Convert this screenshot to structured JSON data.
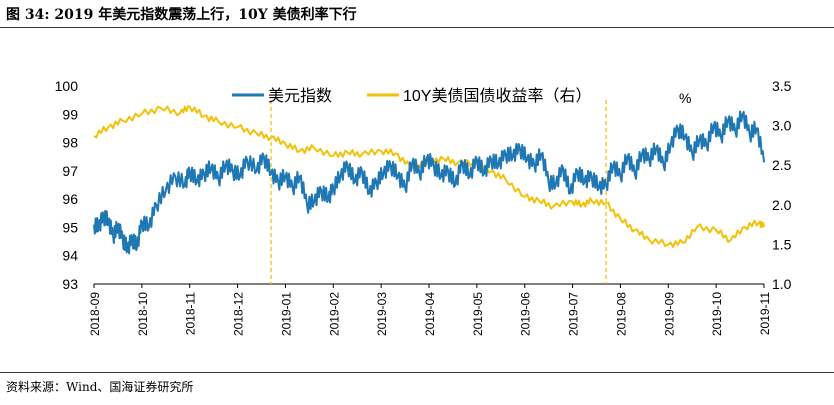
{
  "figure": {
    "title": "图 34: 2019 年美元指数震荡上行，10Y 美债利率下行",
    "source": "资料来源：Wind、国海证券研究所"
  },
  "chart_data": {
    "type": "line",
    "x_labels": [
      "2018-09",
      "2018-10",
      "2018-11",
      "2018-12",
      "2019-01",
      "2019-02",
      "2019-03",
      "2019-04",
      "2019-05",
      "2019-06",
      "2019-07",
      "2019-08",
      "2019-09",
      "2019-10",
      "2019-11"
    ],
    "y_left": {
      "min": 93,
      "max": 100,
      "ticks": [
        "93",
        "94",
        "95",
        "96",
        "97",
        "98",
        "99",
        "100"
      ]
    },
    "y_right": {
      "min": 1.0,
      "max": 3.5,
      "ticks": [
        "1.0",
        "1.5",
        "2.0",
        "2.5",
        "3.0",
        "3.5"
      ],
      "unit": "%"
    },
    "colors": {
      "usd": "#1f77b4",
      "yield": "#f2c20b",
      "marker": "#f2c20b"
    },
    "markers": [
      3.7,
      10.7
    ],
    "series": [
      {
        "name": "美元指数",
        "axis": "left",
        "t": [
          0,
          0.1,
          0.2,
          0.3,
          0.4,
          0.5,
          0.6,
          0.7,
          0.8,
          0.9,
          1.0,
          1.15,
          1.3,
          1.5,
          1.7,
          1.9,
          2.0,
          2.15,
          2.3,
          2.45,
          2.6,
          2.75,
          2.9,
          3.05,
          3.2,
          3.4,
          3.55,
          3.7,
          3.85,
          4.0,
          4.15,
          4.3,
          4.45,
          4.6,
          4.75,
          4.9,
          5.0,
          5.15,
          5.3,
          5.45,
          5.6,
          5.75,
          5.9,
          6.05,
          6.2,
          6.35,
          6.5,
          6.65,
          6.8,
          6.95,
          7.1,
          7.25,
          7.4,
          7.55,
          7.7,
          7.85,
          8.0,
          8.15,
          8.3,
          8.45,
          8.6,
          8.75,
          8.9,
          9.05,
          9.2,
          9.35,
          9.5,
          9.65,
          9.8,
          9.95,
          10.1,
          10.25,
          10.4,
          10.55,
          10.7,
          10.85,
          11.0,
          11.15,
          11.3,
          11.45,
          11.6,
          11.75,
          11.9,
          12.05,
          12.2,
          12.35,
          12.5,
          12.65,
          12.8,
          12.95,
          13.1,
          13.25,
          13.4,
          13.55,
          13.7,
          13.85,
          14.0
        ],
        "values": [
          95.1,
          95.0,
          95.4,
          95.2,
          94.7,
          95.0,
          94.6,
          94.2,
          94.6,
          94.3,
          95.2,
          95.0,
          95.8,
          96.3,
          96.8,
          96.5,
          97.0,
          96.6,
          96.9,
          97.1,
          96.7,
          97.2,
          97.0,
          96.8,
          97.4,
          97.0,
          97.5,
          96.9,
          96.6,
          96.8,
          96.4,
          96.8,
          95.8,
          95.9,
          96.3,
          96.0,
          96.4,
          96.8,
          97.2,
          96.6,
          97.0,
          96.2,
          96.6,
          96.9,
          97.2,
          96.8,
          96.4,
          97.3,
          96.9,
          97.4,
          97.2,
          96.8,
          97.0,
          96.5,
          97.3,
          96.8,
          97.4,
          96.9,
          97.4,
          97.2,
          97.6,
          97.5,
          97.8,
          97.4,
          97.2,
          97.6,
          96.6,
          96.5,
          97.1,
          96.2,
          97.0,
          96.6,
          96.8,
          96.4,
          96.5,
          97.2,
          96.8,
          97.5,
          96.9,
          97.6,
          97.4,
          97.8,
          97.2,
          97.9,
          98.5,
          98.2,
          97.6,
          98.1,
          97.9,
          98.6,
          98.2,
          98.8,
          98.4,
          99.0,
          98.3,
          98.5,
          97.3
        ],
        "wiggle": [
          -0.3,
          0.25,
          -0.2,
          0.3,
          -0.15,
          0.2,
          -0.25,
          0.3,
          -0.1,
          0.2
        ]
      },
      {
        "name": "10Y美债国债收益率（右）",
        "axis": "right",
        "t": [
          0,
          0.3,
          0.6,
          1.0,
          1.4,
          1.8,
          2.0,
          2.3,
          2.6,
          3.0,
          3.4,
          3.7,
          4.0,
          4.3,
          4.6,
          5.0,
          5.3,
          5.6,
          6.0,
          6.3,
          6.6,
          7.0,
          7.3,
          7.6,
          8.0,
          8.3,
          8.6,
          9.0,
          9.3,
          9.6,
          10.0,
          10.2,
          10.4,
          10.7,
          11.0,
          11.3,
          11.6,
          12.0,
          12.3,
          12.6,
          13.0,
          13.3,
          13.6,
          13.9,
          14.0
        ],
        "values": [
          2.87,
          2.98,
          3.06,
          3.15,
          3.22,
          3.16,
          3.24,
          3.12,
          3.05,
          2.98,
          2.9,
          2.85,
          2.77,
          2.68,
          2.72,
          2.62,
          2.66,
          2.64,
          2.68,
          2.65,
          2.48,
          2.55,
          2.58,
          2.53,
          2.52,
          2.42,
          2.32,
          2.1,
          2.05,
          1.98,
          2.04,
          2.0,
          2.05,
          2.02,
          1.82,
          1.68,
          1.56,
          1.5,
          1.52,
          1.72,
          1.68,
          1.55,
          1.72,
          1.78,
          1.72
        ],
        "wiggle": [
          -0.04,
          0.03,
          -0.02,
          0.04,
          -0.03,
          0.02
        ]
      }
    ]
  }
}
